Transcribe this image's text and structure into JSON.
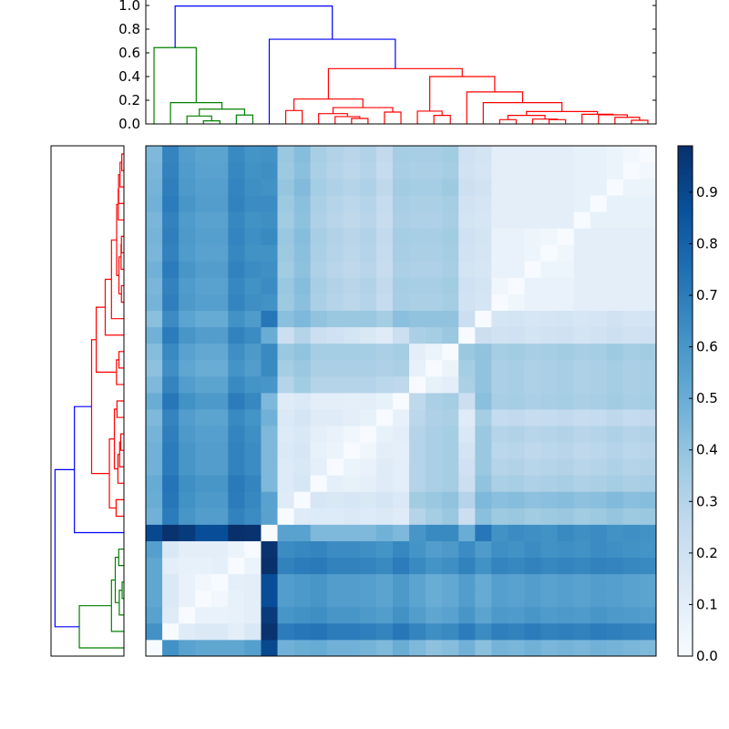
{
  "chart_data": {
    "type": "heatmap",
    "title": "",
    "colormap": "Blues",
    "color_range": [
      0.0,
      0.99
    ],
    "colorbar": {
      "ticks": [
        0.0,
        0.1,
        0.2,
        0.3,
        0.4,
        0.5,
        0.6,
        0.7,
        0.8,
        0.9
      ],
      "tick_labels": [
        "0.0",
        "0.1",
        "0.2",
        "0.3",
        "0.4",
        "0.5",
        "0.6",
        "0.7",
        "0.8",
        "0.9"
      ],
      "placement": "right"
    },
    "dendrogram_top": {
      "ylim": [
        0.0,
        1.0
      ],
      "ticks": [
        0.0,
        0.2,
        0.4,
        0.6,
        0.8,
        1.0
      ],
      "tick_labels": [
        "0.0",
        "0.2",
        "0.4",
        "0.6",
        "0.8",
        "1.0"
      ]
    },
    "dendrogram_left": {
      "orientation": "left",
      "same_tree_as_top": true
    },
    "link_colors": {
      "g": "#008000",
      "r": "#ff0000",
      "b": "#0000ff"
    },
    "tree": [
      [
        0,
        [
          1,
          [
            [
              2,
              [
                3,
                4,
                0.026,
                "g"
              ],
              0.067,
              "g"
            ],
            [
              5,
              6,
              0.075,
              "g"
            ],
            0.125,
            "g"
          ],
          0.18,
          "g"
        ],
        0.644,
        "g"
      ],
      [
        7,
        [
          [
            [
              8,
              9,
              0.113,
              "r"
            ],
            [
              [
                10,
                [
                  11,
                  [
                    12,
                    13,
                    0.046,
                    "r"
                  ],
                  0.062,
                  "r"
                ],
                0.087,
                "r"
              ],
              [
                14,
                15,
                0.1,
                "r"
              ],
              0.138,
              "r"
            ],
            0.21,
            "r"
          ],
          [
            [
              16,
              [
                17,
                18,
                0.072,
                "r"
              ],
              0.108,
              "r"
            ],
            [
              19,
              [
                20,
                [
                  [
                    [
                      21,
                      22,
                      0.036,
                      "r"
                    ],
                    [
                      23,
                      [
                        24,
                        25,
                        0.036,
                        "r"
                      ],
                      0.041,
                      "r"
                    ],
                    0.072,
                    "r"
                  ],
                  [
                    26,
                    [
                      27,
                      [
                        28,
                        [
                          29,
                          30,
                          0.031,
                          "r"
                        ],
                        0.056,
                        "r"
                      ],
                      0.077,
                      "r"
                    ],
                    0.082,
                    "r"
                  ],
                  0.105,
                  "r"
                ],
                0.18,
                "r"
              ],
              0.27,
              "r"
            ],
            0.4,
            "r"
          ],
          0.467,
          "r"
        ],
        0.715,
        "b"
      ],
      0.995,
      "b"
    ],
    "matrix_note_order": "rows bottom-to-top and columns left-to-right follow dendrogram leaf order",
    "matrix": [
      [
        0,
        0.62,
        0.55,
        0.53,
        0.53,
        0.53,
        0.56,
        0.9,
        0.48,
        0.5,
        0.51,
        0.48,
        0.48,
        0.47,
        0.45,
        0.5,
        0.45,
        0.41,
        0.43,
        0.48,
        0.42,
        0.47,
        0.46,
        0.48,
        0.46,
        0.47,
        0.46,
        0.48,
        0.47,
        0.46,
        0.45
      ],
      [
        0.62,
        0,
        0.12,
        0.14,
        0.14,
        0.1,
        0.15,
        0.98,
        0.7,
        0.72,
        0.73,
        0.7,
        0.7,
        0.69,
        0.67,
        0.72,
        0.67,
        0.63,
        0.65,
        0.7,
        0.64,
        0.69,
        0.68,
        0.7,
        0.68,
        0.69,
        0.68,
        0.7,
        0.69,
        0.68,
        0.67
      ],
      [
        0.55,
        0.12,
        0,
        0.07,
        0.07,
        0.08,
        0.1,
        0.95,
        0.6,
        0.62,
        0.63,
        0.6,
        0.6,
        0.59,
        0.57,
        0.62,
        0.57,
        0.53,
        0.55,
        0.6,
        0.54,
        0.59,
        0.58,
        0.6,
        0.58,
        0.59,
        0.58,
        0.6,
        0.59,
        0.58,
        0.57
      ],
      [
        0.53,
        0.14,
        0.07,
        0,
        0.03,
        0.08,
        0.1,
        0.88,
        0.57,
        0.59,
        0.6,
        0.57,
        0.57,
        0.56,
        0.54,
        0.59,
        0.54,
        0.5,
        0.52,
        0.57,
        0.51,
        0.56,
        0.55,
        0.57,
        0.55,
        0.56,
        0.55,
        0.57,
        0.56,
        0.55,
        0.54
      ],
      [
        0.53,
        0.14,
        0.07,
        0.03,
        0,
        0.09,
        0.1,
        0.88,
        0.57,
        0.59,
        0.6,
        0.57,
        0.57,
        0.56,
        0.54,
        0.59,
        0.54,
        0.5,
        0.52,
        0.57,
        0.51,
        0.56,
        0.55,
        0.57,
        0.55,
        0.56,
        0.55,
        0.57,
        0.56,
        0.55,
        0.54
      ],
      [
        0.53,
        0.1,
        0.08,
        0.08,
        0.09,
        0,
        0.06,
        0.99,
        0.68,
        0.7,
        0.71,
        0.68,
        0.68,
        0.67,
        0.65,
        0.7,
        0.65,
        0.61,
        0.63,
        0.68,
        0.62,
        0.67,
        0.66,
        0.68,
        0.66,
        0.67,
        0.66,
        0.68,
        0.67,
        0.66,
        0.65
      ],
      [
        0.56,
        0.15,
        0.1,
        0.1,
        0.1,
        0.06,
        0,
        0.98,
        0.64,
        0.66,
        0.67,
        0.64,
        0.64,
        0.63,
        0.61,
        0.66,
        0.61,
        0.57,
        0.59,
        0.64,
        0.58,
        0.63,
        0.62,
        0.64,
        0.62,
        0.63,
        0.62,
        0.64,
        0.63,
        0.62,
        0.61
      ],
      [
        0.9,
        0.98,
        0.95,
        0.88,
        0.88,
        0.99,
        0.98,
        0,
        0.55,
        0.55,
        0.45,
        0.45,
        0.45,
        0.45,
        0.48,
        0.45,
        0.6,
        0.65,
        0.65,
        0.5,
        0.72,
        0.62,
        0.64,
        0.63,
        0.62,
        0.65,
        0.63,
        0.64,
        0.62,
        0.63,
        0.62
      ],
      [
        0.48,
        0.7,
        0.6,
        0.57,
        0.57,
        0.68,
        0.64,
        0.55,
        0,
        0.12,
        0.13,
        0.13,
        0.14,
        0.13,
        0.14,
        0.12,
        0.3,
        0.35,
        0.38,
        0.22,
        0.42,
        0.37,
        0.38,
        0.36,
        0.37,
        0.38,
        0.36,
        0.37,
        0.39,
        0.37,
        0.38
      ],
      [
        0.5,
        0.72,
        0.62,
        0.59,
        0.59,
        0.7,
        0.66,
        0.55,
        0.12,
        0,
        0.16,
        0.15,
        0.16,
        0.15,
        0.17,
        0.14,
        0.36,
        0.38,
        0.4,
        0.3,
        0.45,
        0.42,
        0.43,
        0.41,
        0.42,
        0.43,
        0.41,
        0.42,
        0.44,
        0.42,
        0.43
      ],
      [
        0.51,
        0.73,
        0.63,
        0.6,
        0.6,
        0.71,
        0.67,
        0.45,
        0.13,
        0.16,
        0,
        0.09,
        0.08,
        0.09,
        0.12,
        0.1,
        0.3,
        0.33,
        0.35,
        0.22,
        0.4,
        0.33,
        0.34,
        0.32,
        0.33,
        0.34,
        0.32,
        0.33,
        0.35,
        0.33,
        0.34
      ],
      [
        0.48,
        0.7,
        0.6,
        0.57,
        0.57,
        0.68,
        0.64,
        0.45,
        0.13,
        0.15,
        0.09,
        0,
        0.06,
        0.07,
        0.12,
        0.1,
        0.3,
        0.33,
        0.35,
        0.2,
        0.38,
        0.3,
        0.31,
        0.29,
        0.3,
        0.31,
        0.29,
        0.3,
        0.32,
        0.3,
        0.31
      ],
      [
        0.48,
        0.7,
        0.6,
        0.57,
        0.57,
        0.68,
        0.64,
        0.45,
        0.14,
        0.16,
        0.08,
        0.06,
        0,
        0.04,
        0.1,
        0.09,
        0.3,
        0.33,
        0.35,
        0.18,
        0.38,
        0.28,
        0.29,
        0.27,
        0.28,
        0.29,
        0.27,
        0.28,
        0.3,
        0.28,
        0.29
      ],
      [
        0.47,
        0.69,
        0.59,
        0.56,
        0.56,
        0.67,
        0.63,
        0.45,
        0.13,
        0.15,
        0.09,
        0.07,
        0.04,
        0,
        0.08,
        0.1,
        0.3,
        0.33,
        0.35,
        0.15,
        0.38,
        0.3,
        0.31,
        0.29,
        0.3,
        0.31,
        0.29,
        0.3,
        0.32,
        0.3,
        0.31
      ],
      [
        0.45,
        0.67,
        0.57,
        0.54,
        0.54,
        0.65,
        0.61,
        0.48,
        0.14,
        0.17,
        0.12,
        0.12,
        0.1,
        0.08,
        0,
        0.08,
        0.28,
        0.32,
        0.33,
        0.12,
        0.35,
        0.25,
        0.26,
        0.24,
        0.25,
        0.26,
        0.24,
        0.25,
        0.27,
        0.25,
        0.26
      ],
      [
        0.5,
        0.72,
        0.62,
        0.59,
        0.59,
        0.7,
        0.66,
        0.45,
        0.12,
        0.14,
        0.1,
        0.1,
        0.09,
        0.1,
        0.08,
        0,
        0.27,
        0.33,
        0.35,
        0.22,
        0.42,
        0.34,
        0.35,
        0.33,
        0.34,
        0.35,
        0.33,
        0.34,
        0.36,
        0.34,
        0.35
      ],
      [
        0.45,
        0.67,
        0.57,
        0.54,
        0.54,
        0.65,
        0.61,
        0.6,
        0.3,
        0.36,
        0.3,
        0.3,
        0.3,
        0.3,
        0.28,
        0.27,
        0,
        0.08,
        0.1,
        0.33,
        0.4,
        0.33,
        0.34,
        0.32,
        0.33,
        0.34,
        0.32,
        0.33,
        0.35,
        0.33,
        0.34
      ],
      [
        0.41,
        0.63,
        0.53,
        0.5,
        0.5,
        0.61,
        0.57,
        0.65,
        0.35,
        0.38,
        0.33,
        0.33,
        0.33,
        0.33,
        0.32,
        0.33,
        0.08,
        0,
        0.06,
        0.35,
        0.4,
        0.33,
        0.34,
        0.32,
        0.33,
        0.34,
        0.32,
        0.33,
        0.35,
        0.33,
        0.34
      ],
      [
        0.43,
        0.65,
        0.55,
        0.52,
        0.52,
        0.63,
        0.59,
        0.65,
        0.38,
        0.4,
        0.35,
        0.35,
        0.35,
        0.35,
        0.33,
        0.35,
        0.1,
        0.06,
        0,
        0.38,
        0.4,
        0.35,
        0.36,
        0.34,
        0.35,
        0.36,
        0.34,
        0.35,
        0.37,
        0.35,
        0.36
      ],
      [
        0.48,
        0.7,
        0.6,
        0.57,
        0.57,
        0.68,
        0.64,
        0.5,
        0.22,
        0.3,
        0.22,
        0.2,
        0.18,
        0.15,
        0.12,
        0.22,
        0.33,
        0.35,
        0.38,
        0,
        0.22,
        0.19,
        0.2,
        0.18,
        0.19,
        0.2,
        0.18,
        0.19,
        0.21,
        0.19,
        0.2
      ],
      [
        0.42,
        0.64,
        0.54,
        0.51,
        0.51,
        0.62,
        0.58,
        0.72,
        0.42,
        0.45,
        0.4,
        0.38,
        0.38,
        0.38,
        0.35,
        0.42,
        0.4,
        0.4,
        0.4,
        0.22,
        0,
        0.17,
        0.18,
        0.16,
        0.17,
        0.18,
        0.16,
        0.17,
        0.19,
        0.17,
        0.18
      ],
      [
        0.47,
        0.69,
        0.59,
        0.56,
        0.56,
        0.67,
        0.63,
        0.62,
        0.37,
        0.42,
        0.33,
        0.3,
        0.28,
        0.3,
        0.25,
        0.34,
        0.33,
        0.33,
        0.35,
        0.19,
        0.17,
        0,
        0.04,
        0.07,
        0.07,
        0.07,
        0.1,
        0.1,
        0.1,
        0.1,
        0.1
      ],
      [
        0.46,
        0.68,
        0.58,
        0.55,
        0.55,
        0.66,
        0.62,
        0.64,
        0.38,
        0.43,
        0.34,
        0.31,
        0.29,
        0.31,
        0.26,
        0.35,
        0.34,
        0.34,
        0.36,
        0.2,
        0.18,
        0.04,
        0,
        0.07,
        0.07,
        0.07,
        0.1,
        0.1,
        0.1,
        0.1,
        0.1
      ],
      [
        0.48,
        0.7,
        0.6,
        0.57,
        0.57,
        0.68,
        0.64,
        0.63,
        0.36,
        0.41,
        0.32,
        0.29,
        0.27,
        0.29,
        0.24,
        0.33,
        0.32,
        0.32,
        0.34,
        0.18,
        0.16,
        0.07,
        0.07,
        0,
        0.05,
        0.05,
        0.1,
        0.1,
        0.1,
        0.1,
        0.1
      ],
      [
        0.46,
        0.68,
        0.58,
        0.55,
        0.55,
        0.66,
        0.62,
        0.62,
        0.37,
        0.42,
        0.33,
        0.3,
        0.28,
        0.3,
        0.25,
        0.34,
        0.33,
        0.33,
        0.35,
        0.19,
        0.17,
        0.07,
        0.07,
        0.05,
        0,
        0.04,
        0.1,
        0.1,
        0.1,
        0.1,
        0.1
      ],
      [
        0.47,
        0.69,
        0.59,
        0.56,
        0.56,
        0.67,
        0.63,
        0.65,
        0.38,
        0.43,
        0.34,
        0.31,
        0.29,
        0.31,
        0.26,
        0.35,
        0.34,
        0.34,
        0.36,
        0.2,
        0.18,
        0.07,
        0.07,
        0.05,
        0.04,
        0,
        0.1,
        0.1,
        0.1,
        0.1,
        0.1
      ],
      [
        0.46,
        0.68,
        0.58,
        0.55,
        0.55,
        0.66,
        0.62,
        0.63,
        0.36,
        0.41,
        0.32,
        0.29,
        0.27,
        0.29,
        0.24,
        0.33,
        0.32,
        0.32,
        0.34,
        0.18,
        0.16,
        0.1,
        0.1,
        0.1,
        0.1,
        0.1,
        0,
        0.08,
        0.08,
        0.08,
        0.08
      ],
      [
        0.48,
        0.7,
        0.6,
        0.57,
        0.57,
        0.68,
        0.64,
        0.64,
        0.37,
        0.42,
        0.33,
        0.3,
        0.28,
        0.3,
        0.25,
        0.34,
        0.33,
        0.33,
        0.35,
        0.19,
        0.17,
        0.1,
        0.1,
        0.1,
        0.1,
        0.1,
        0.08,
        0,
        0.08,
        0.08,
        0.08
      ],
      [
        0.47,
        0.69,
        0.59,
        0.56,
        0.56,
        0.67,
        0.63,
        0.62,
        0.39,
        0.44,
        0.35,
        0.32,
        0.3,
        0.32,
        0.27,
        0.36,
        0.35,
        0.35,
        0.37,
        0.21,
        0.19,
        0.1,
        0.1,
        0.1,
        0.1,
        0.1,
        0.08,
        0.08,
        0,
        0.06,
        0.06
      ],
      [
        0.46,
        0.68,
        0.58,
        0.55,
        0.55,
        0.66,
        0.62,
        0.63,
        0.37,
        0.42,
        0.33,
        0.3,
        0.28,
        0.3,
        0.25,
        0.34,
        0.33,
        0.33,
        0.35,
        0.19,
        0.17,
        0.1,
        0.1,
        0.1,
        0.1,
        0.1,
        0.08,
        0.08,
        0.06,
        0,
        0.03
      ],
      [
        0.45,
        0.67,
        0.57,
        0.54,
        0.54,
        0.65,
        0.61,
        0.62,
        0.38,
        0.43,
        0.34,
        0.31,
        0.29,
        0.31,
        0.26,
        0.35,
        0.34,
        0.34,
        0.36,
        0.2,
        0.18,
        0.1,
        0.1,
        0.1,
        0.1,
        0.1,
        0.08,
        0.08,
        0.06,
        0.03,
        0
      ]
    ]
  }
}
